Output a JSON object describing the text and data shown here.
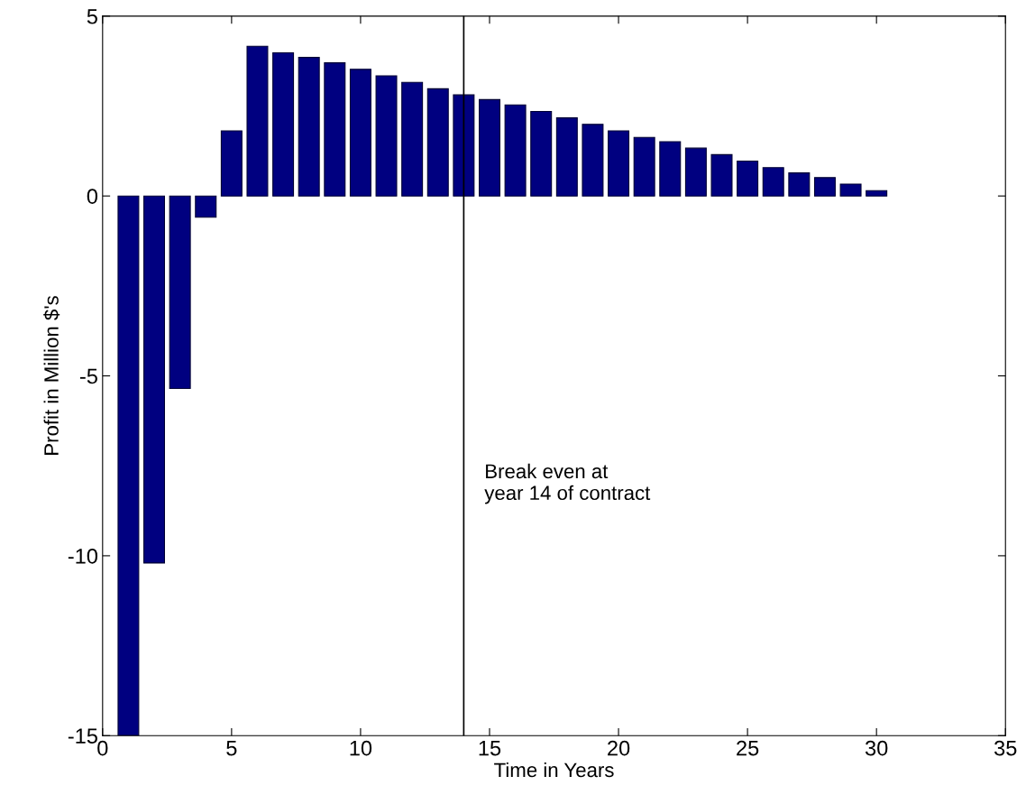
{
  "chart_data": {
    "type": "bar",
    "xlabel": "Time in Years",
    "ylabel": "Profit in Million $'s",
    "x": [
      1,
      2,
      3,
      4,
      5,
      6,
      7,
      8,
      9,
      10,
      11,
      12,
      13,
      14,
      15,
      16,
      17,
      18,
      19,
      20,
      21,
      22,
      23,
      24,
      25,
      26,
      27,
      28,
      29,
      30
    ],
    "values": [
      -15,
      -10.2,
      -5.35,
      -0.59,
      1.81,
      4.16,
      3.98,
      3.85,
      3.7,
      3.52,
      3.34,
      3.16,
      2.98,
      2.81,
      2.68,
      2.53,
      2.35,
      2.17,
      1.99,
      1.81,
      1.63,
      1.51,
      1.33,
      1.15,
      0.97,
      0.79,
      0.64,
      0.51,
      0.33,
      0.15
    ],
    "color": "#000080",
    "xlim": [
      0,
      35
    ],
    "xticks": [
      0,
      5,
      10,
      15,
      20,
      25,
      30,
      35
    ],
    "ylim": [
      -15,
      5
    ],
    "yticks": [
      -15,
      -10,
      -5,
      0,
      5
    ],
    "ref_lines": [
      {
        "axis": "x",
        "value": 14,
        "label": "Break even at\nyear 14 of contract",
        "color": "#000000"
      }
    ],
    "grid": false
  }
}
